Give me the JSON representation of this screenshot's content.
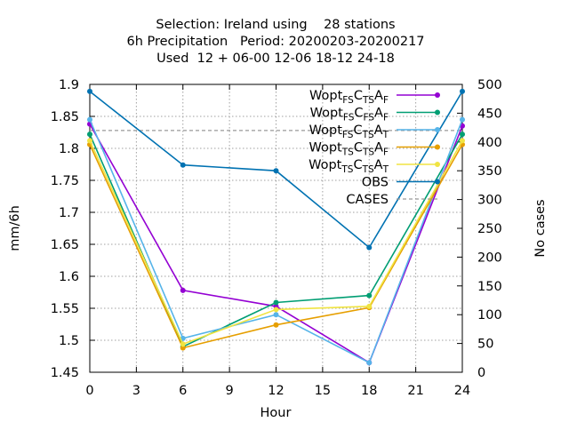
{
  "chart_data": {
    "type": "line",
    "title_lines": [
      "Selection: Ireland using    28 stations",
      "6h Precipitation   Period: 20200203-20200217",
      "Used  12 + 06-00 12-06 18-12 24-18"
    ],
    "xlabel": "Hour",
    "ylabel": "mm/6h",
    "y2label": "No cases",
    "xlim": [
      0,
      24
    ],
    "ylim": [
      1.45,
      1.9
    ],
    "y2lim": [
      0,
      500
    ],
    "xticks": [
      "0",
      "3",
      "6",
      "9",
      "12",
      "15",
      "18",
      "21",
      "24"
    ],
    "yticks": [
      "1.45",
      "1.5",
      "1.55",
      "1.6",
      "1.65",
      "1.7",
      "1.75",
      "1.8",
      "1.85",
      "1.9"
    ],
    "y2ticks": [
      "0",
      "50",
      "100",
      "150",
      "200",
      "250",
      "300",
      "350",
      "400",
      "450",
      "500"
    ],
    "grid": true,
    "legend_position": "top-right",
    "x": [
      0,
      6,
      12,
      18,
      24
    ],
    "series": [
      {
        "name": "Wopt FS CTS AF",
        "label_parts": [
          [
            "Wopt",
            ""
          ],
          [
            "FS",
            "sub"
          ],
          [
            "C",
            ""
          ],
          [
            "TS",
            "sub"
          ],
          [
            "A",
            ""
          ],
          [
            "F",
            "sub"
          ]
        ],
        "color": "#9400d3",
        "values": [
          1.838,
          1.578,
          1.553,
          1.465,
          1.835
        ]
      },
      {
        "name": "Wopt FS CFS AF",
        "label_parts": [
          [
            "Wopt",
            ""
          ],
          [
            "FS",
            "sub"
          ],
          [
            "C",
            ""
          ],
          [
            "FS",
            "sub"
          ],
          [
            "A",
            ""
          ],
          [
            "F",
            "sub"
          ]
        ],
        "color": "#009e73",
        "values": [
          1.822,
          1.49,
          1.559,
          1.57,
          1.822
        ]
      },
      {
        "name": "Wopt FS CTS AT",
        "label_parts": [
          [
            "Wopt",
            ""
          ],
          [
            "FS",
            "sub"
          ],
          [
            "C",
            ""
          ],
          [
            "TS",
            "sub"
          ],
          [
            "A",
            ""
          ],
          [
            "T",
            "sub"
          ]
        ],
        "color": "#56b4e9",
        "values": [
          1.845,
          1.503,
          1.54,
          1.465,
          1.845
        ]
      },
      {
        "name": "Wopt TS CTS AF",
        "label_parts": [
          [
            "Wopt",
            ""
          ],
          [
            "TS",
            "sub"
          ],
          [
            "C",
            ""
          ],
          [
            "TS",
            "sub"
          ],
          [
            "A",
            ""
          ],
          [
            "F",
            "sub"
          ]
        ],
        "color": "#e69f00",
        "values": [
          1.806,
          1.488,
          1.524,
          1.551,
          1.806
        ]
      },
      {
        "name": "Wopt TS CTS AT",
        "label_parts": [
          [
            "Wopt",
            ""
          ],
          [
            "TS",
            "sub"
          ],
          [
            "C",
            ""
          ],
          [
            "TS",
            "sub"
          ],
          [
            "A",
            ""
          ],
          [
            "T",
            "sub"
          ]
        ],
        "color": "#f0e442",
        "values": [
          1.812,
          1.494,
          1.548,
          1.553,
          1.812
        ]
      },
      {
        "name": "OBS",
        "label_parts": [
          [
            "OBS",
            ""
          ]
        ],
        "color": "#0072b2",
        "values": [
          1.889,
          1.774,
          1.765,
          1.645,
          1.889
        ]
      }
    ],
    "cases": {
      "name": "CASES",
      "axis": "y2",
      "color": "#999999",
      "style": "dashed",
      "value": 420
    }
  }
}
